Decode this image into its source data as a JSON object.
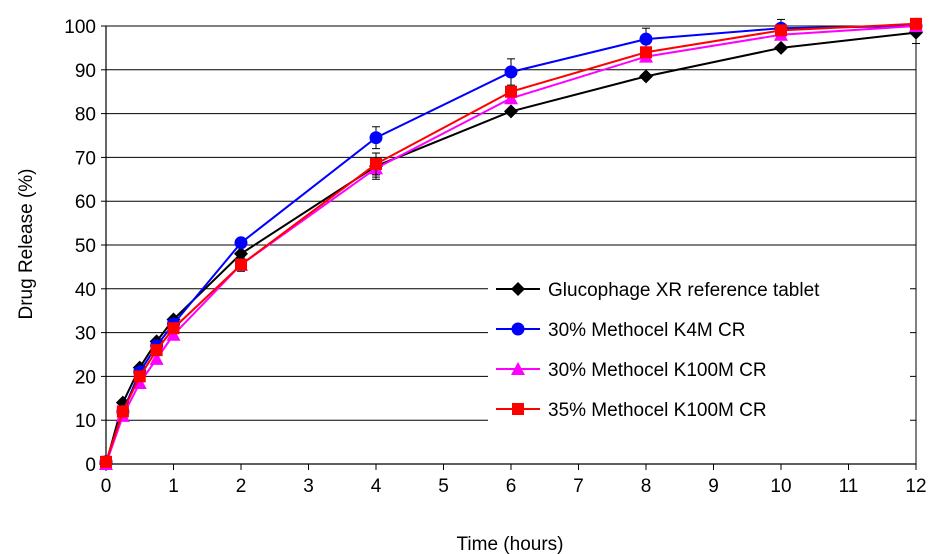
{
  "chart_data": {
    "type": "line",
    "xlabel": "Time (hours)",
    "ylabel": "Drug Release (%)",
    "xlim": [
      0,
      12
    ],
    "ylim": [
      0,
      100
    ],
    "x_ticks": [
      "0",
      "1",
      "2",
      "3",
      "4",
      "5",
      "6",
      "7",
      "8",
      "9",
      "10",
      "11",
      "12"
    ],
    "y_ticks": [
      "0",
      "10",
      "20",
      "30",
      "40",
      "50",
      "60",
      "70",
      "80",
      "90",
      "100"
    ],
    "grid": {
      "horizontal": true,
      "vertical": false
    },
    "legend_position": "bottom-right",
    "series": [
      {
        "name": "Glucophage XR reference tablet",
        "color": "#000000",
        "marker": "diamond",
        "x": [
          0,
          0.25,
          0.5,
          0.75,
          1,
          2,
          4,
          6,
          8,
          10,
          12
        ],
        "y": [
          0,
          14,
          22,
          28,
          33,
          48,
          68,
          80.5,
          88.5,
          95,
          98.5
        ],
        "error": [
          0,
          0,
          0,
          0,
          0,
          0,
          3,
          0,
          0,
          0,
          2.5
        ]
      },
      {
        "name": "30% Methocel K4M CR",
        "color": "#0000ff",
        "marker": "circle",
        "x": [
          0,
          0.25,
          0.5,
          0.75,
          1,
          2,
          4,
          6,
          8,
          10,
          12
        ],
        "y": [
          0.5,
          12,
          21,
          27,
          32,
          50.5,
          74.5,
          89.5,
          97,
          99.5,
          100
        ],
        "error": [
          0,
          0,
          0,
          0,
          0,
          0,
          2.5,
          3,
          2.5,
          2,
          0
        ]
      },
      {
        "name": "30% Methocel K100M CR",
        "color": "#ff00ff",
        "marker": "triangle",
        "x": [
          0,
          0.25,
          0.5,
          0.75,
          1,
          2,
          4,
          6,
          8,
          10,
          12
        ],
        "y": [
          0,
          11,
          18.5,
          24,
          29.5,
          45.5,
          67.5,
          83.5,
          93,
          98,
          100
        ],
        "error": [
          0,
          0,
          0,
          0,
          0,
          1.5,
          2,
          0,
          0,
          0,
          0
        ]
      },
      {
        "name": "35% Methocel K100M CR",
        "color": "#ff0000",
        "marker": "square",
        "x": [
          0,
          0.25,
          0.5,
          0.75,
          1,
          2,
          4,
          6,
          8,
          10,
          12
        ],
        "y": [
          0.5,
          12,
          20,
          26,
          31,
          45.5,
          68.5,
          85,
          94,
          99,
          100.5
        ],
        "error": [
          0,
          0,
          0,
          0,
          0,
          0,
          2.5,
          0,
          0,
          0,
          0
        ]
      }
    ]
  }
}
